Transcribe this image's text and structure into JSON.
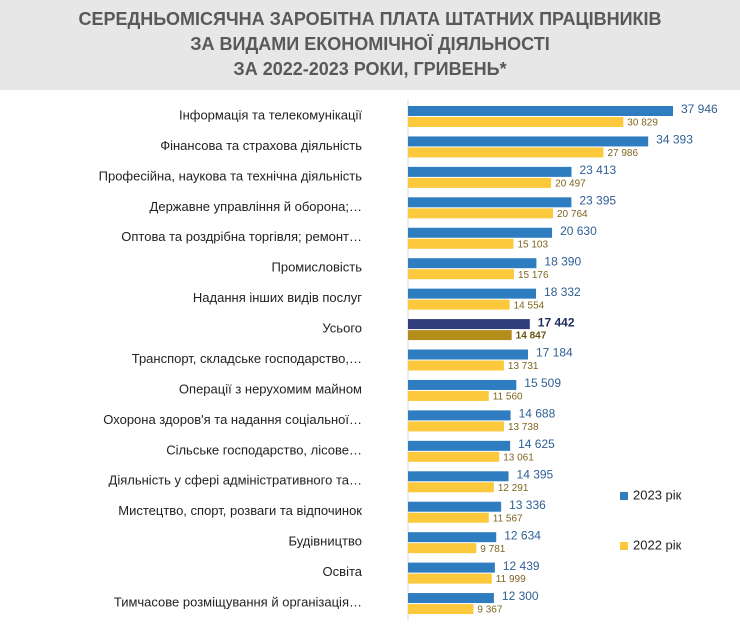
{
  "chart_data": {
    "type": "hbar",
    "title_lines": [
      "СЕРЕДНЬОМІСЯЧНА ЗАРОБІТНА ПЛАТА ШТАТНИХ ПРАЦІВНИКІВ",
      "ЗА ВИДАМИ ЕКОНОМІЧНОЇ ДІЯЛЬНОСТІ",
      "ЗА 2022-2023 РОКИ, ГРИВЕНЬ*"
    ],
    "categories": [
      "Інформація та телекомунікації",
      "Фінансова та страхова діяльність",
      "Професійна, наукова та технічна діяльність",
      "Державне управління й оборона;…",
      "Оптова та роздрібна торгівля; ремонт…",
      "Промисловість",
      "Надання інших видів послуг",
      "Усього",
      "Транспорт, складське господарство,…",
      "Операції з нерухомим майном",
      "Охорона здоров'я та надання соціальної…",
      "Сільське господарство, лісове…",
      "Діяльність у сфері адміністративного та…",
      "Мистецтво, спорт, розваги та відпочинок",
      "Будівництво",
      "Освіта",
      "Тимчасове розміщування й організація…"
    ],
    "series": [
      {
        "name": "2023 рік",
        "color": "#2e7dc0",
        "colors": [
          "#2e7dc0",
          "#2e7dc0",
          "#2e7dc0",
          "#2e7dc0",
          "#2e7dc0",
          "#2e7dc0",
          "#2e7dc0",
          "#2f3d7c",
          "#2e7dc0",
          "#2e7dc0",
          "#2e7dc0",
          "#2e7dc0",
          "#2e7dc0",
          "#2e7dc0",
          "#2e7dc0",
          "#2e7dc0",
          "#2e7dc0"
        ],
        "values": [
          37946,
          34393,
          23413,
          23395,
          20630,
          18390,
          18332,
          17442,
          17184,
          15509,
          14688,
          14625,
          14395,
          13336,
          12634,
          12439,
          12300
        ],
        "value_labels": [
          "37 946",
          "34 393",
          "23 413",
          "23 395",
          "20 630",
          "18 390",
          "18 332",
          "17 442",
          "17 184",
          "15 509",
          "14 688",
          "14 625",
          "14 395",
          "13 336",
          "12 634",
          "12 439",
          "12 300"
        ]
      },
      {
        "name": "2022 рік",
        "color": "#fcc83c",
        "colors": [
          "#fcc83c",
          "#fcc83c",
          "#fcc83c",
          "#fcc83c",
          "#fcc83c",
          "#fcc83c",
          "#fcc83c",
          "#b48d1a",
          "#fcc83c",
          "#fcc83c",
          "#fcc83c",
          "#fcc83c",
          "#fcc83c",
          "#fcc83c",
          "#fcc83c",
          "#fcc83c",
          "#fcc83c"
        ],
        "values": [
          30829,
          27986,
          20497,
          20764,
          15103,
          15176,
          14554,
          14847,
          13731,
          11560,
          13738,
          13061,
          12291,
          11567,
          9781,
          11999,
          9367
        ],
        "value_labels": [
          "30 829",
          "27 986",
          "20 497",
          "20 764",
          "15 103",
          "15 176",
          "14 554",
          "14 847",
          "13 731",
          "11 560",
          "13 738",
          "13 061",
          "12 291",
          "11 567",
          "9 781",
          "11 999",
          "9 367"
        ]
      }
    ]
  }
}
